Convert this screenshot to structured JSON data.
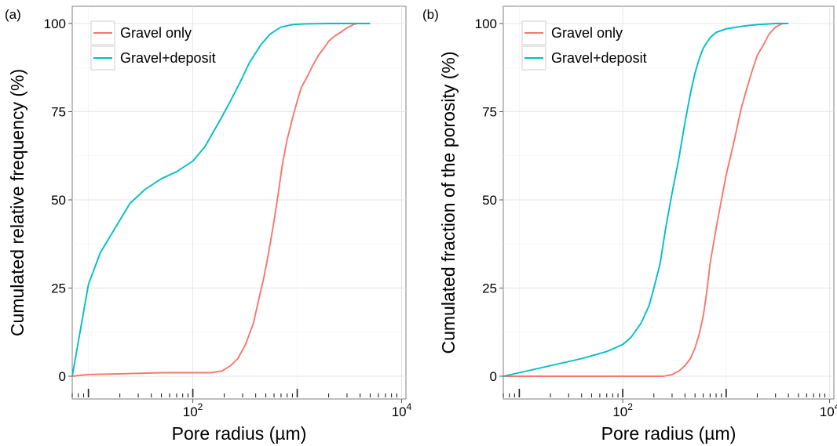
{
  "chart_data": [
    {
      "type": "line",
      "panel_label": "(a)",
      "xlabel": "Pore radius (µm)",
      "ylabel": "Cumulated relative frequency (%)",
      "x_scale": "log10",
      "xlim": [
        7,
        11000
      ],
      "ylim": [
        0,
        100
      ],
      "x_ticks": [
        {
          "value": 100,
          "base": "10",
          "exp": "2"
        },
        {
          "value": 10000,
          "base": "10",
          "exp": "4"
        }
      ],
      "y_ticks": [
        "0",
        "25",
        "50",
        "75",
        "100"
      ],
      "grid": true,
      "legend_position": "top-left",
      "series": [
        {
          "name": "Gravel only",
          "color": "#f8766d",
          "x": [
            7,
            10,
            20,
            50,
            100,
            150,
            190,
            230,
            270,
            320,
            380,
            430,
            480,
            540,
            600,
            660,
            720,
            800,
            900,
            1000,
            1100,
            1250,
            1400,
            1600,
            1800,
            2000,
            2300,
            2600,
            2900,
            3200,
            3500,
            3800
          ],
          "y": [
            0,
            0.5,
            0.7,
            1,
            1,
            1,
            1.5,
            3,
            5,
            9,
            15,
            22,
            28,
            36,
            44,
            52,
            60,
            67,
            73,
            78,
            82,
            85,
            88,
            91,
            93,
            95,
            96.5,
            97.5,
            98.5,
            99.2,
            99.8,
            100
          ]
        },
        {
          "name": "Gravel+deposit",
          "color": "#00bfc4",
          "x": [
            7,
            10,
            13,
            18,
            25,
            35,
            50,
            70,
            100,
            130,
            170,
            220,
            280,
            350,
            450,
            550,
            700,
            900,
            1200,
            2000,
            4000,
            5000
          ],
          "y": [
            0,
            26,
            35,
            42,
            49,
            53,
            56,
            58,
            61,
            65,
            71,
            77,
            83,
            89,
            94,
            97,
            99,
            99.7,
            99.9,
            100,
            100,
            100
          ]
        }
      ]
    },
    {
      "type": "line",
      "panel_label": "(b)",
      "xlabel": "Pore radius (µm)",
      "ylabel": "Cumulated fraction of the porosity (%)",
      "x_scale": "log10",
      "xlim": [
        7,
        11000
      ],
      "ylim": [
        0,
        100
      ],
      "x_ticks": [
        {
          "value": 100,
          "base": "10",
          "exp": "2"
        },
        {
          "value": 10000,
          "base": "10",
          "exp": "4"
        }
      ],
      "y_ticks": [
        "0",
        "25",
        "50",
        "75",
        "100"
      ],
      "grid": true,
      "legend_position": "top-left",
      "series": [
        {
          "name": "Gravel only",
          "color": "#f8766d",
          "x": [
            7,
            100,
            250,
            300,
            350,
            400,
            450,
            500,
            550,
            600,
            650,
            700,
            800,
            900,
            1000,
            1200,
            1400,
            1600,
            1800,
            2000,
            2300,
            2600,
            3000,
            3500
          ],
          "y": [
            0,
            0,
            0,
            0.5,
            1.5,
            3,
            5,
            8,
            12,
            17,
            24,
            32,
            42,
            50,
            57,
            67,
            76,
            82,
            87,
            91,
            94,
            97,
            99,
            100
          ]
        },
        {
          "name": "Gravel+deposit",
          "color": "#00bfc4",
          "x": [
            7,
            10,
            20,
            40,
            70,
            100,
            120,
            150,
            180,
            200,
            230,
            260,
            300,
            350,
            400,
            450,
            500,
            550,
            600,
            700,
            800,
            1000,
            1500,
            2000,
            3000,
            4000
          ],
          "y": [
            0,
            1,
            3,
            5,
            7,
            9,
            11,
            15,
            20,
            25,
            32,
            42,
            52,
            62,
            72,
            80,
            86,
            90,
            93,
            96,
            97.5,
            98.5,
            99.3,
            99.7,
            100,
            100
          ]
        }
      ]
    }
  ]
}
